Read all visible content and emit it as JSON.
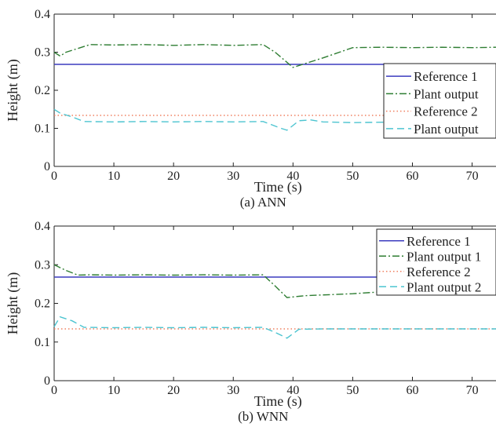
{
  "chart_data": [
    {
      "type": "line",
      "caption": "(a) ANN",
      "xlabel": "Time (s)",
      "ylabel": "Height (m)",
      "xlim": [
        0,
        74
      ],
      "ylim": [
        0,
        0.4
      ],
      "xticks": [
        0,
        10,
        20,
        30,
        40,
        50,
        60,
        70
      ],
      "yticks": [
        0,
        0.1,
        0.2,
        0.3,
        0.4
      ],
      "xtick_labels": [
        "0",
        "10",
        "20",
        "30",
        "40",
        "50",
        "60",
        "70"
      ],
      "ytick_labels": [
        "0",
        "0.1",
        "0.2",
        "0.3",
        "0.4"
      ],
      "legend": [
        "Reference 1",
        "Plant output",
        "Reference 2",
        "Plant output"
      ],
      "legend_placement": "right",
      "series": [
        {
          "name": "Reference 1",
          "color": "#3b3bbf",
          "dash": "solid",
          "x": [
            0,
            74
          ],
          "y": [
            0.268,
            0.268
          ]
        },
        {
          "name": "Plant output",
          "color": "#2e7d32",
          "dash": "dashdot",
          "x": [
            0,
            1,
            2,
            4,
            6,
            10,
            15,
            20,
            25,
            30,
            35,
            37,
            40,
            45,
            50,
            55,
            60,
            65,
            70,
            74
          ],
          "y": [
            0.3,
            0.29,
            0.3,
            0.31,
            0.32,
            0.319,
            0.32,
            0.318,
            0.32,
            0.318,
            0.32,
            0.3,
            0.26,
            0.285,
            0.312,
            0.313,
            0.312,
            0.313,
            0.312,
            0.313
          ]
        },
        {
          "name": "Reference 2",
          "color": "#f08060",
          "dash": "dotted",
          "x": [
            0,
            74
          ],
          "y": [
            0.134,
            0.134
          ]
        },
        {
          "name": "Plant output",
          "color": "#4cc4d0",
          "dash": "dashed",
          "x": [
            0,
            1,
            3,
            5,
            10,
            15,
            20,
            25,
            30,
            35,
            38,
            39,
            41,
            43,
            45,
            50,
            55,
            60,
            65,
            70,
            74
          ],
          "y": [
            0.15,
            0.14,
            0.13,
            0.118,
            0.117,
            0.118,
            0.117,
            0.118,
            0.117,
            0.118,
            0.1,
            0.095,
            0.12,
            0.122,
            0.117,
            0.115,
            0.116,
            0.115,
            0.116,
            0.115,
            0.116
          ]
        }
      ]
    },
    {
      "type": "line",
      "caption": "(b) WNN",
      "xlabel": "Time (s)",
      "ylabel": "Height (m)",
      "xlim": [
        0,
        74
      ],
      "ylim": [
        0,
        0.4
      ],
      "xticks": [
        0,
        10,
        20,
        30,
        40,
        50,
        60,
        70
      ],
      "yticks": [
        0,
        0.1,
        0.2,
        0.3,
        0.4
      ],
      "xtick_labels": [
        "0",
        "10",
        "20",
        "30",
        "40",
        "50",
        "60",
        "70"
      ],
      "ytick_labels": [
        "0",
        "0.1",
        "0.2",
        "0.3",
        "0.4"
      ],
      "legend": [
        "Reference 1",
        "Plant output 1",
        "Reference 2",
        "Plant output 2"
      ],
      "legend_placement": "top-right",
      "series": [
        {
          "name": "Reference 1",
          "color": "#3b3bbf",
          "dash": "solid",
          "x": [
            0,
            74
          ],
          "y": [
            0.268,
            0.268
          ]
        },
        {
          "name": "Plant output 1",
          "color": "#2e7d32",
          "dash": "dashdot",
          "x": [
            0,
            2,
            4,
            6,
            10,
            15,
            20,
            25,
            30,
            35,
            37,
            39,
            42,
            50,
            55
          ],
          "y": [
            0.3,
            0.285,
            0.273,
            0.274,
            0.273,
            0.274,
            0.273,
            0.274,
            0.273,
            0.274,
            0.245,
            0.215,
            0.22,
            0.225,
            0.23
          ]
        },
        {
          "name": "Reference 2",
          "color": "#f08060",
          "dash": "dotted",
          "x": [
            0,
            74
          ],
          "y": [
            0.134,
            0.134
          ]
        },
        {
          "name": "Plant output 2",
          "color": "#4cc4d0",
          "dash": "dashed",
          "x": [
            0,
            1,
            3,
            5,
            10,
            15,
            20,
            25,
            30,
            35,
            37,
            39,
            41,
            45,
            50,
            55,
            60,
            65,
            70,
            74
          ],
          "y": [
            0.14,
            0.165,
            0.155,
            0.138,
            0.137,
            0.138,
            0.137,
            0.138,
            0.137,
            0.138,
            0.125,
            0.11,
            0.133,
            0.134,
            0.134,
            0.134,
            0.134,
            0.134,
            0.134,
            0.134
          ]
        }
      ]
    }
  ]
}
